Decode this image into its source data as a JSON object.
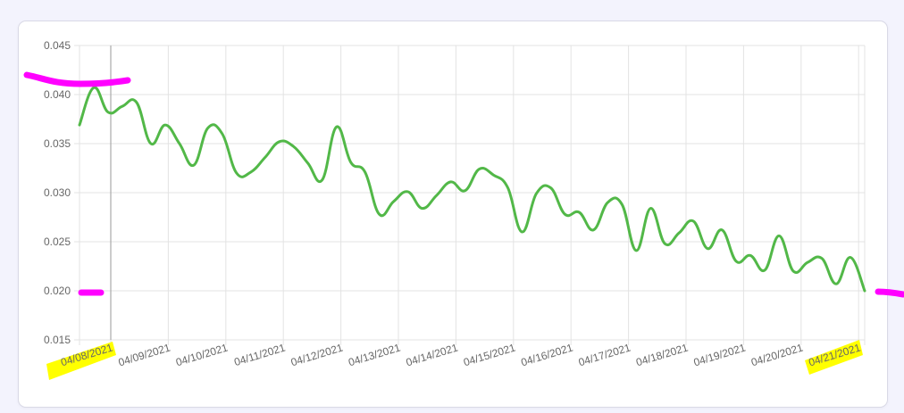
{
  "chart_data": {
    "type": "line",
    "title": "",
    "xlabel": "",
    "ylabel": "",
    "ylim": [
      0.015,
      0.045
    ],
    "y_ticks": [
      "0.045",
      "0.040",
      "0.035",
      "0.030",
      "0.025",
      "0.020",
      "0.015"
    ],
    "y_tick_values": [
      0.045,
      0.04,
      0.035,
      0.03,
      0.025,
      0.02,
      0.015
    ],
    "x_tick_labels": [
      "04/08/2021",
      "04/09/2021",
      "04/10/2021",
      "04/11/2021",
      "04/12/2021",
      "04/13/2021",
      "04/14/2021",
      "04/15/2021",
      "04/16/2021",
      "04/17/2021",
      "04/18/2021",
      "04/19/2021",
      "04/20/2021",
      "04/21/2021"
    ],
    "grid": true,
    "series": [
      {
        "color": "#52b848",
        "values": [
          0.0369,
          0.0407,
          0.0382,
          0.0388,
          0.0392,
          0.035,
          0.0369,
          0.035,
          0.0328,
          0.0366,
          0.036,
          0.032,
          0.0321,
          0.0336,
          0.0352,
          0.0347,
          0.033,
          0.0313,
          0.0367,
          0.0331,
          0.0321,
          0.0278,
          0.0291,
          0.0301,
          0.0284,
          0.0297,
          0.0311,
          0.0302,
          0.0324,
          0.0318,
          0.0305,
          0.026,
          0.0299,
          0.0305,
          0.0278,
          0.028,
          0.0262,
          0.029,
          0.0288,
          0.0241,
          0.0284,
          0.0248,
          0.0259,
          0.0271,
          0.0243,
          0.0262,
          0.023,
          0.0236,
          0.0221,
          0.0256,
          0.022,
          0.0229,
          0.0233,
          0.0207,
          0.0234,
          0.02
        ]
      }
    ]
  },
  "annotations": {
    "magenta": "#ff00ff",
    "yellow": "#ffff00"
  }
}
